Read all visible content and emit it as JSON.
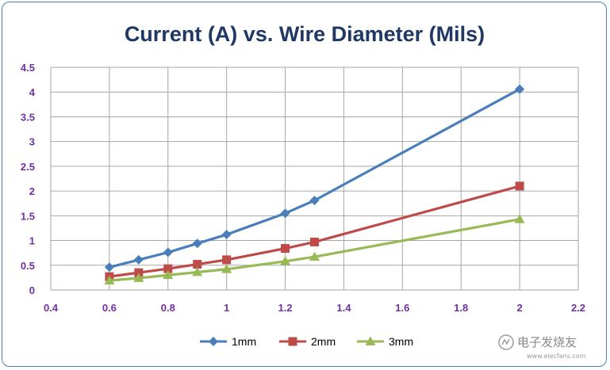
{
  "chart_data": {
    "type": "line",
    "title": "Current (A) vs. Wire Diameter (Mils)",
    "xlabel": "",
    "ylabel": "",
    "xlim": [
      0.4,
      2.2
    ],
    "ylim": [
      0,
      4.5
    ],
    "x_ticks": [
      0.4,
      0.6,
      0.8,
      1.0,
      1.2,
      1.4,
      1.6,
      1.8,
      2.0,
      2.2
    ],
    "x_tick_labels": [
      "0.4",
      "0.6",
      "0.8",
      "1",
      "1.2",
      "1.4",
      "1.6",
      "1.8",
      "2",
      "2.2"
    ],
    "y_ticks": [
      0,
      0.5,
      1.0,
      1.5,
      2.0,
      2.5,
      3.0,
      3.5,
      4.0,
      4.5
    ],
    "y_tick_labels": [
      "0",
      "0.5",
      "1",
      "1.5",
      "2",
      "2.5",
      "3",
      "3.5",
      "4",
      "4.5"
    ],
    "grid": true,
    "legend_position": "bottom",
    "x": [
      0.6,
      0.7,
      0.8,
      0.9,
      1.0,
      1.2,
      1.3,
      2.0
    ],
    "series": [
      {
        "name": "1mm",
        "color": "#4a7ebb",
        "marker": "diamond",
        "values": [
          0.46,
          0.61,
          0.76,
          0.94,
          1.12,
          1.55,
          1.81,
          4.06
        ]
      },
      {
        "name": "2mm",
        "color": "#be4b48",
        "marker": "square",
        "values": [
          0.27,
          0.35,
          0.43,
          0.52,
          0.61,
          0.84,
          0.97,
          2.1
        ]
      },
      {
        "name": "3mm",
        "color": "#98b954",
        "marker": "triangle",
        "values": [
          0.19,
          0.24,
          0.3,
          0.36,
          0.42,
          0.58,
          0.67,
          1.43
        ]
      }
    ]
  },
  "watermark": {
    "text": "电子发烧友",
    "sub": "www.elecfans.com",
    "icon": "signal-logo-icon"
  }
}
